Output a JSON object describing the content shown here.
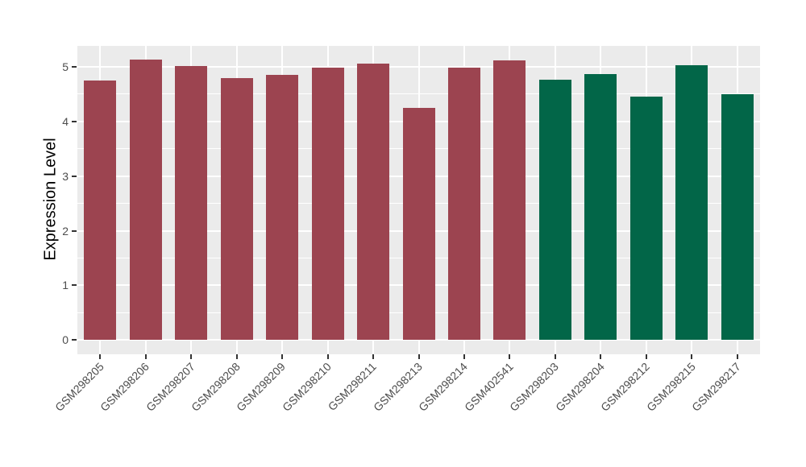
{
  "chart_data": {
    "type": "bar",
    "title": "",
    "ylabel": "Expression Level",
    "xlabel": "",
    "categories": [
      "GSM298205",
      "GSM298206",
      "GSM298207",
      "GSM298208",
      "GSM298209",
      "GSM298210",
      "GSM298211",
      "GSM298213",
      "GSM298214",
      "GSM402541",
      "GSM298203",
      "GSM298204",
      "GSM298212",
      "GSM298215",
      "GSM298217"
    ],
    "values": [
      4.75,
      5.13,
      5.01,
      4.79,
      4.85,
      4.98,
      5.05,
      4.24,
      4.98,
      5.12,
      4.76,
      4.86,
      4.45,
      5.03,
      4.5
    ],
    "bar_colors": [
      "#9C4450",
      "#9C4450",
      "#9C4450",
      "#9C4450",
      "#9C4450",
      "#9C4450",
      "#9C4450",
      "#9C4450",
      "#9C4450",
      "#9C4450",
      "#026648",
      "#026648",
      "#026648",
      "#026648",
      "#026648"
    ],
    "yticks": [
      0,
      1,
      2,
      3,
      4,
      5
    ],
    "minor_yticks": [
      0.5,
      1.5,
      2.5,
      3.5,
      4.5
    ],
    "ylim": [
      -0.26,
      5.38
    ],
    "grid": "major-and-minor",
    "legend_position": "none",
    "x_label_angle": 45,
    "colors": {
      "bar_group_left": "#9C4450",
      "bar_group_right": "#026648",
      "panel_background": "#EBEBEB",
      "gridline": "#FFFFFF",
      "axis_text": "#4D4D4D",
      "axis_title": "#000000",
      "tick_mark": "#333333",
      "figure_background": "#FFFFFF"
    }
  }
}
